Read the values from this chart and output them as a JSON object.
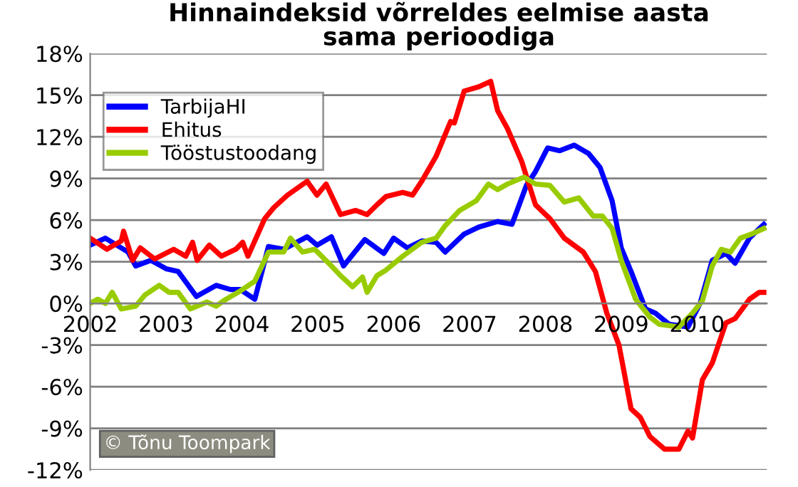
{
  "chart_data": {
    "type": "line",
    "title": "Hinnaindeksid võrreldes eelmise aasta\nsama perioodiga",
    "series": [
      {
        "name": "TarbijaHI",
        "color": "#0000ff",
        "x": [
          2002.0,
          2002.2,
          2002.5,
          2002.6,
          2002.8,
          2003.0,
          2003.16,
          2003.4,
          2003.66,
          2003.85,
          2003.98,
          2004.17,
          2004.35,
          2004.55,
          2004.86,
          2004.99,
          2005.18,
          2005.34,
          2005.62,
          2005.87,
          2006.0,
          2006.18,
          2006.37,
          2006.56,
          2006.68,
          2006.93,
          2007.12,
          2007.37,
          2007.56,
          2007.75,
          2007.87,
          2008.03,
          2008.19,
          2008.38,
          2008.57,
          2008.72,
          2008.88,
          2009.0,
          2009.13,
          2009.32,
          2009.45,
          2009.63,
          2009.88,
          2010.04,
          2010.2,
          2010.38,
          2010.5,
          2010.69,
          2010.88
        ],
        "values": [
          4.2,
          4.7,
          3.7,
          2.7,
          3.1,
          2.5,
          2.3,
          0.5,
          1.3,
          1.0,
          1.0,
          0.3,
          4.1,
          3.9,
          4.8,
          4.2,
          4.8,
          2.7,
          4.6,
          3.6,
          4.7,
          4.0,
          4.5,
          4.4,
          3.7,
          5.0,
          5.5,
          5.9,
          5.7,
          8.5,
          9.5,
          11.2,
          11.0,
          11.4,
          10.8,
          9.8,
          7.4,
          4.0,
          2.3,
          -0.4,
          -0.7,
          -1.5,
          -1.7,
          0.0,
          3.1,
          3.6,
          2.9,
          4.7,
          5.7
        ]
      },
      {
        "name": "Ehitus",
        "color": "#ff0000",
        "x": [
          2002.0,
          2002.22,
          2002.41,
          2002.44,
          2002.56,
          2002.66,
          2002.85,
          2003.1,
          2003.26,
          2003.35,
          2003.41,
          2003.57,
          2003.73,
          2003.92,
          2004.01,
          2004.08,
          2004.3,
          2004.42,
          2004.6,
          2004.86,
          2004.99,
          2005.11,
          2005.3,
          2005.5,
          2005.65,
          2005.78,
          2005.9,
          2006.12,
          2006.25,
          2006.37,
          2006.56,
          2006.75,
          2006.8,
          2006.93,
          2007.12,
          2007.28,
          2007.37,
          2007.5,
          2007.69,
          2007.87,
          2008.06,
          2008.25,
          2008.5,
          2008.66,
          2008.81,
          2008.97,
          2009.13,
          2009.25,
          2009.38,
          2009.57,
          2009.76,
          2009.88,
          2009.94,
          2010.07,
          2010.2,
          2010.38,
          2010.5,
          2010.69,
          2010.82,
          2010.88
        ],
        "values": [
          4.7,
          3.9,
          4.5,
          5.2,
          3.1,
          4.0,
          3.2,
          3.9,
          3.4,
          4.4,
          3.1,
          4.2,
          3.4,
          3.9,
          4.4,
          3.4,
          6.1,
          6.9,
          7.8,
          8.8,
          7.8,
          8.6,
          6.4,
          6.7,
          6.4,
          7.1,
          7.7,
          8.0,
          7.8,
          8.8,
          10.6,
          13.1,
          13.0,
          15.3,
          15.6,
          16.0,
          13.9,
          12.6,
          10.2,
          7.1,
          6.1,
          4.7,
          3.7,
          2.3,
          -0.7,
          -3.0,
          -7.6,
          -8.2,
          -9.6,
          -10.5,
          -10.5,
          -9.2,
          -9.7,
          -5.5,
          -4.3,
          -1.4,
          -1.1,
          0.3,
          0.8,
          0.8
        ]
      },
      {
        "name": "Tööstustoodang",
        "color": "#99cc00",
        "x": [
          2002.0,
          2002.1,
          2002.2,
          2002.29,
          2002.41,
          2002.6,
          2002.72,
          2002.91,
          2003.04,
          2003.16,
          2003.32,
          2003.54,
          2003.66,
          2003.79,
          2003.98,
          2004.17,
          2004.35,
          2004.55,
          2004.64,
          2004.8,
          2004.96,
          2005.18,
          2005.3,
          2005.46,
          2005.59,
          2005.65,
          2005.78,
          2005.9,
          2006.12,
          2006.37,
          2006.56,
          2006.68,
          2006.87,
          2007.09,
          2007.25,
          2007.37,
          2007.5,
          2007.72,
          2007.87,
          2008.06,
          2008.25,
          2008.44,
          2008.63,
          2008.75,
          2008.88,
          2009.0,
          2009.19,
          2009.38,
          2009.5,
          2009.76,
          2009.94,
          2010.07,
          2010.2,
          2010.32,
          2010.44,
          2010.57,
          2010.72,
          2010.88
        ],
        "values": [
          0.0,
          0.3,
          0.0,
          0.8,
          -0.4,
          -0.2,
          0.6,
          1.3,
          0.8,
          0.8,
          -0.4,
          0.1,
          -0.2,
          0.3,
          0.9,
          1.6,
          3.7,
          3.7,
          4.7,
          3.7,
          3.9,
          2.7,
          2.0,
          1.2,
          1.9,
          0.8,
          2.0,
          2.4,
          3.4,
          4.4,
          4.7,
          5.6,
          6.7,
          7.4,
          8.6,
          8.2,
          8.6,
          9.1,
          8.6,
          8.5,
          7.3,
          7.6,
          6.3,
          6.3,
          5.4,
          3.1,
          0.3,
          -1.0,
          -1.5,
          -1.7,
          -0.7,
          0.2,
          2.7,
          3.9,
          3.7,
          4.7,
          5.0,
          5.4
        ]
      }
    ],
    "xlim": [
      2002,
      2010.92
    ],
    "xticks": [
      2002,
      2003,
      2004,
      2005,
      2006,
      2007,
      2008,
      2009,
      2010
    ],
    "ylim": [
      -12,
      18
    ],
    "yticks": [
      {
        "value": -12,
        "label": "-12%"
      },
      {
        "value": -9,
        "label": "-9%"
      },
      {
        "value": -6,
        "label": "-6%"
      },
      {
        "value": -3,
        "label": "-3%"
      },
      {
        "value": 0,
        "label": "0%"
      },
      {
        "value": 3,
        "label": "3%"
      },
      {
        "value": 6,
        "label": "6%"
      },
      {
        "value": 9,
        "label": "9%"
      },
      {
        "value": 12,
        "label": "12%"
      },
      {
        "value": 15,
        "label": "15%"
      },
      {
        "value": 18,
        "label": "18%"
      }
    ],
    "grid": "y",
    "legend": "top left",
    "marker": "none",
    "line_style": "solid",
    "annotations": [
      "© Tõnu Toompark"
    ]
  }
}
